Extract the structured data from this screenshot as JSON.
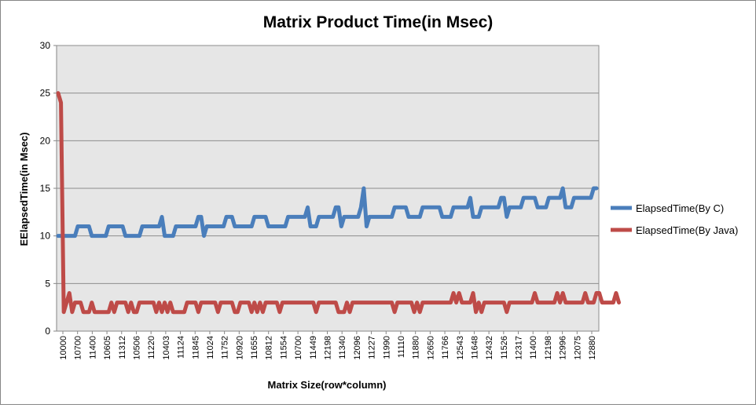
{
  "chart_data": {
    "type": "line",
    "title": "Matrix Product Time(in Msec)",
    "xlabel": "Matrix Size(row*column)",
    "ylabel": "EElapsedTime(in Msec)",
    "ylim": [
      0,
      30
    ],
    "y_ticks": [
      0,
      5,
      10,
      15,
      20,
      25,
      30
    ],
    "grid": true,
    "legend_position": "right",
    "x_tick_labels": [
      "10000",
      "10700",
      "11400",
      "10605",
      "11312",
      "10506",
      "11220",
      "10403",
      "11124",
      "11845",
      "11024",
      "11752",
      "10920",
      "11655",
      "10812",
      "11554",
      "10700",
      "11449",
      "12198",
      "11340",
      "12096",
      "11227",
      "11990",
      "11110",
      "11880",
      "12650",
      "11766",
      "12543",
      "11648",
      "12432",
      "11526",
      "12317",
      "11400",
      "12198",
      "12996",
      "12075",
      "12880"
    ],
    "series": [
      {
        "name": "ElapsedTime(By C)",
        "color": "#4a7ebb",
        "values": [
          10,
          10,
          10,
          10,
          10,
          10,
          10,
          11,
          11,
          11,
          11,
          11,
          10,
          10,
          10,
          10,
          10,
          10,
          11,
          11,
          11,
          11,
          11,
          11,
          10,
          10,
          10,
          10,
          10,
          10,
          11,
          11,
          11,
          11,
          11,
          11,
          11,
          12,
          10,
          10,
          10,
          10,
          11,
          11,
          11,
          11,
          11,
          11,
          11,
          11,
          12,
          12,
          10,
          11,
          11,
          11,
          11,
          11,
          11,
          11,
          12,
          12,
          12,
          11,
          11,
          11,
          11,
          11,
          11,
          11,
          12,
          12,
          12,
          12,
          12,
          11,
          11,
          11,
          11,
          11,
          11,
          11,
          12,
          12,
          12,
          12,
          12,
          12,
          12,
          13,
          11,
          11,
          11,
          12,
          12,
          12,
          12,
          12,
          12,
          13,
          13,
          11,
          12,
          12,
          12,
          12,
          12,
          12,
          13,
          15,
          11,
          12,
          12,
          12,
          12,
          12,
          12,
          12,
          12,
          12,
          13,
          13,
          13,
          13,
          13,
          12,
          12,
          12,
          12,
          12,
          13,
          13,
          13,
          13,
          13,
          13,
          13,
          12,
          12,
          12,
          12,
          13,
          13,
          13,
          13,
          13,
          13,
          14,
          12,
          12,
          12,
          13,
          13,
          13,
          13,
          13,
          13,
          13,
          14,
          14,
          12,
          13,
          13,
          13,
          13,
          13,
          14,
          14,
          14,
          14,
          14,
          13,
          13,
          13,
          13,
          14,
          14,
          14,
          14,
          14,
          15,
          13,
          13,
          13,
          14,
          14,
          14,
          14,
          14,
          14,
          14,
          15,
          15
        ]
      },
      {
        "name": "ElapsedTime(By Java)",
        "color": "#be4b48",
        "values": [
          25,
          24,
          2,
          3,
          4,
          2,
          3,
          3,
          3,
          2,
          2,
          2,
          3,
          2,
          2,
          2,
          2,
          2,
          2,
          3,
          2,
          3,
          3,
          3,
          3,
          2,
          3,
          2,
          2,
          3,
          3,
          3,
          3,
          3,
          3,
          2,
          3,
          2,
          3,
          2,
          3,
          2,
          2,
          2,
          2,
          2,
          3,
          3,
          3,
          3,
          2,
          3,
          3,
          3,
          3,
          3,
          3,
          2,
          3,
          3,
          3,
          3,
          3,
          2,
          2,
          3,
          3,
          3,
          3,
          2,
          3,
          2,
          3,
          2,
          3,
          3,
          3,
          3,
          3,
          2,
          3,
          3,
          3,
          3,
          3,
          3,
          3,
          3,
          3,
          3,
          3,
          3,
          2,
          3,
          3,
          3,
          3,
          3,
          3,
          3,
          2,
          2,
          2,
          3,
          2,
          3,
          3,
          3,
          3,
          3,
          3,
          3,
          3,
          3,
          3,
          3,
          3,
          3,
          3,
          3,
          2,
          3,
          3,
          3,
          3,
          3,
          3,
          2,
          3,
          2,
          3,
          3,
          3,
          3,
          3,
          3,
          3,
          3,
          3,
          3,
          3,
          4,
          3,
          4,
          3,
          3,
          3,
          3,
          4,
          2,
          3,
          2,
          3,
          3,
          3,
          3,
          3,
          3,
          3,
          3,
          2,
          3,
          3,
          3,
          3,
          3,
          3,
          3,
          3,
          3,
          4,
          3,
          3,
          3,
          3,
          3,
          3,
          3,
          4,
          3,
          4,
          3,
          3,
          3,
          3,
          3,
          3,
          3,
          4,
          3,
          3,
          3,
          4,
          4,
          3,
          3,
          3,
          3,
          3,
          4,
          3
        ]
      }
    ]
  }
}
